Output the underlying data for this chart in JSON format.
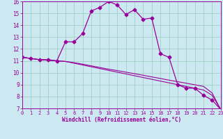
{
  "xlabel": "Windchill (Refroidissement éolien,°C)",
  "bg_color": "#cce8f0",
  "grid_color": "#99ccbb",
  "line_color": "#990099",
  "x_values": [
    0,
    1,
    2,
    3,
    4,
    5,
    6,
    7,
    8,
    9,
    10,
    11,
    12,
    13,
    14,
    15,
    16,
    17,
    18,
    19,
    20,
    21,
    22,
    23
  ],
  "series1": [
    11.3,
    11.2,
    11.1,
    11.1,
    11.0,
    12.6,
    12.6,
    13.3,
    15.2,
    15.5,
    16.0,
    15.7,
    14.9,
    15.3,
    14.5,
    14.6,
    11.6,
    11.3,
    9.0,
    8.7,
    8.7,
    8.1,
    7.7,
    6.9
  ],
  "series2": [
    11.3,
    11.2,
    11.1,
    11.05,
    11.0,
    10.95,
    10.8,
    10.65,
    10.5,
    10.35,
    10.2,
    10.05,
    9.9,
    9.75,
    9.6,
    9.45,
    9.3,
    9.15,
    9.0,
    8.85,
    8.7,
    8.55,
    8.1,
    6.9
  ],
  "series3": [
    11.3,
    11.2,
    11.1,
    11.05,
    11.0,
    10.95,
    10.85,
    10.72,
    10.58,
    10.44,
    10.3,
    10.18,
    10.05,
    9.92,
    9.79,
    9.65,
    9.52,
    9.38,
    9.25,
    9.12,
    8.99,
    8.85,
    8.3,
    6.9
  ],
  "ylim": [
    7,
    16
  ],
  "xlim": [
    0,
    23
  ],
  "yticks": [
    7,
    8,
    9,
    10,
    11,
    12,
    13,
    14,
    15,
    16
  ],
  "xticks": [
    0,
    1,
    2,
    3,
    4,
    5,
    6,
    7,
    8,
    9,
    10,
    11,
    12,
    13,
    14,
    15,
    16,
    17,
    18,
    19,
    20,
    21,
    22,
    23
  ]
}
